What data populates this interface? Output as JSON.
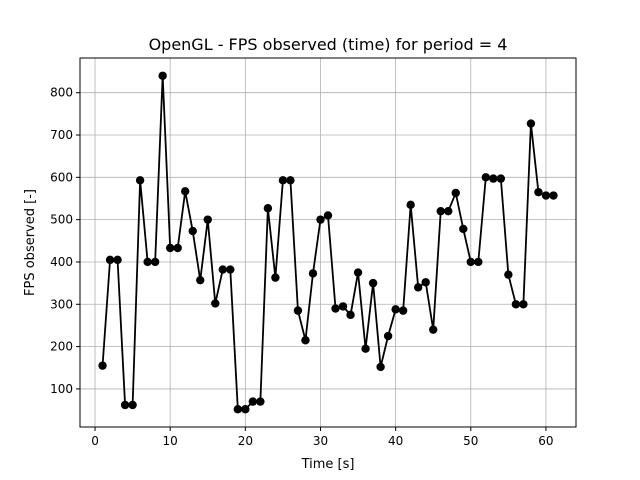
{
  "chart_data": {
    "type": "line",
    "title": "OpenGL - FPS observed (time) for period = 4",
    "xlabel": "Time [s]",
    "ylabel": "FPS observed [-]",
    "xlim": [
      -2,
      64
    ],
    "ylim": [
      10,
      882
    ],
    "xticks": [
      0,
      10,
      20,
      30,
      40,
      50,
      60
    ],
    "yticks": [
      100,
      200,
      300,
      400,
      500,
      600,
      700,
      800
    ],
    "grid": true,
    "series": [
      {
        "color": "#000000",
        "marker": "circle",
        "x": [
          1,
          2,
          3,
          4,
          5,
          6,
          7,
          8,
          9,
          10,
          11,
          12,
          13,
          14,
          15,
          16,
          17,
          18,
          19,
          20,
          21,
          22,
          23,
          24,
          25,
          26,
          27,
          28,
          29,
          30,
          31,
          32,
          33,
          34,
          35,
          36,
          37,
          38,
          39,
          40,
          41,
          42,
          43,
          44,
          45,
          46,
          47,
          48,
          49,
          50,
          51,
          52,
          53,
          54,
          55,
          56,
          57,
          58,
          59,
          60,
          61
        ],
        "y": [
          155,
          405,
          405,
          62,
          62,
          593,
          400,
          400,
          840,
          433,
          433,
          567,
          473,
          357,
          500,
          302,
          382,
          382,
          52,
          52,
          70,
          70,
          527,
          363,
          593,
          593,
          285,
          215,
          373,
          500,
          510,
          290,
          295,
          275,
          375,
          195,
          350,
          152,
          225,
          288,
          285,
          535,
          340,
          352,
          240,
          520,
          520,
          563,
          478,
          400,
          400,
          600,
          597,
          597,
          370,
          300,
          300,
          727,
          565,
          557,
          557
        ]
      }
    ]
  }
}
